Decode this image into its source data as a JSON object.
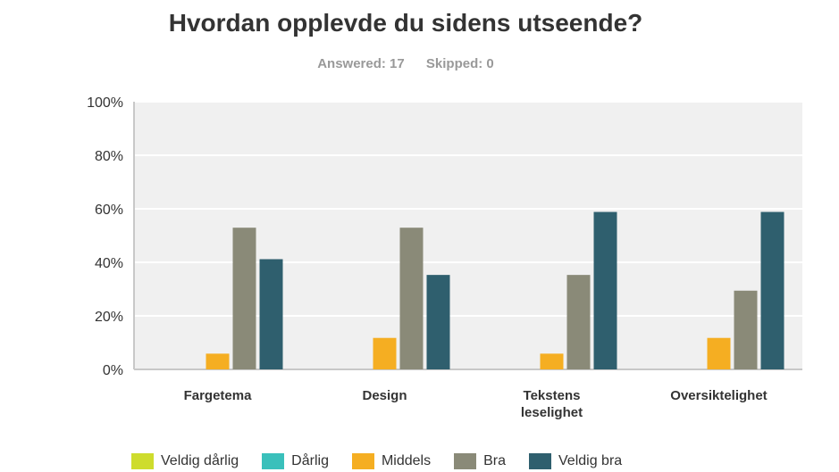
{
  "header": {
    "title": "Hvordan opplevde du sidens utseende?",
    "answered": "Answered: 17",
    "skipped": "Skipped: 0"
  },
  "chart_data": {
    "type": "bar",
    "categories": [
      "Fargetema",
      "Design",
      "Tekstens leselighet",
      "Oversiktelighet"
    ],
    "ylim": [
      0,
      100
    ],
    "yticks": [
      "0%",
      "20%",
      "40%",
      "60%",
      "80%",
      "100%"
    ],
    "grid": true,
    "legend_position": "bottom",
    "series": [
      {
        "name": "Veldig dårlig",
        "color": "#cedc2d",
        "values": [
          0,
          0,
          0,
          0
        ]
      },
      {
        "name": "Dårlig",
        "color": "#3ac0bb",
        "values": [
          0,
          0,
          0,
          0
        ]
      },
      {
        "name": "Middels",
        "color": "#f5ae22",
        "values": [
          5.88,
          11.76,
          5.88,
          11.76
        ]
      },
      {
        "name": "Bra",
        "color": "#8a8a78",
        "values": [
          52.94,
          52.94,
          35.29,
          29.41
        ]
      },
      {
        "name": "Veldig bra",
        "color": "#2f5f6e",
        "values": [
          41.18,
          35.29,
          58.82,
          58.82
        ]
      }
    ]
  }
}
